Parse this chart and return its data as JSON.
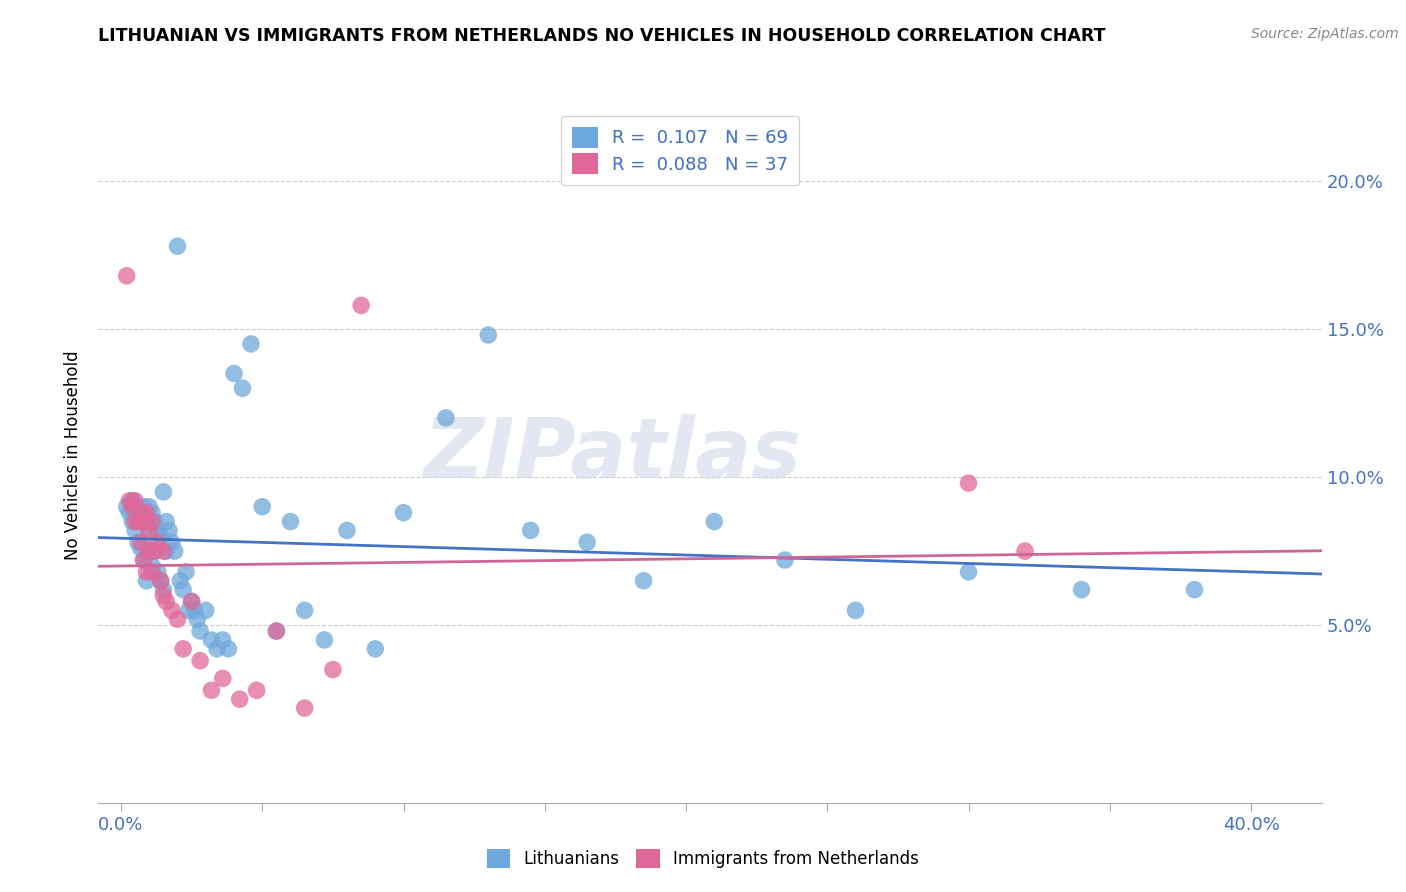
{
  "title": "LITHUANIAN VS IMMIGRANTS FROM NETHERLANDS NO VEHICLES IN HOUSEHOLD CORRELATION CHART",
  "source": "Source: ZipAtlas.com",
  "ylabel": "No Vehicles in Household",
  "ytick_vals": [
    0.05,
    0.1,
    0.15,
    0.2
  ],
  "ytick_labels": [
    "5.0%",
    "10.0%",
    "15.0%",
    "20.0%"
  ],
  "xtick_vals": [
    0.0,
    0.05,
    0.1,
    0.15,
    0.2,
    0.25,
    0.3,
    0.35,
    0.4
  ],
  "xlim": [
    -0.008,
    0.425
  ],
  "ylim": [
    -0.01,
    0.225
  ],
  "blue_color": "#6fa8dc",
  "pink_color": "#e06899",
  "blue_line_color": "#4472c4",
  "pink_line_color": "#cc6699",
  "axis_label_color": "#4472c4",
  "grid_color": "#cccccc",
  "watermark_text": "ZIPatlas",
  "legend_R1": "R =  0.107",
  "legend_N1": "N = 69",
  "legend_R2": "R =  0.088",
  "legend_N2": "N = 37",
  "blue_x": [
    0.002,
    0.003,
    0.004,
    0.004,
    0.005,
    0.005,
    0.006,
    0.006,
    0.007,
    0.007,
    0.008,
    0.008,
    0.009,
    0.009,
    0.009,
    0.01,
    0.01,
    0.01,
    0.011,
    0.011,
    0.012,
    0.012,
    0.013,
    0.013,
    0.014,
    0.014,
    0.015,
    0.015,
    0.016,
    0.016,
    0.017,
    0.018,
    0.019,
    0.02,
    0.021,
    0.022,
    0.023,
    0.024,
    0.025,
    0.026,
    0.027,
    0.028,
    0.03,
    0.032,
    0.034,
    0.036,
    0.038,
    0.04,
    0.043,
    0.046,
    0.05,
    0.055,
    0.06,
    0.065,
    0.072,
    0.08,
    0.09,
    0.1,
    0.115,
    0.13,
    0.145,
    0.165,
    0.185,
    0.21,
    0.235,
    0.26,
    0.3,
    0.34,
    0.38
  ],
  "blue_y": [
    0.09,
    0.088,
    0.085,
    0.092,
    0.09,
    0.082,
    0.088,
    0.078,
    0.085,
    0.076,
    0.09,
    0.072,
    0.086,
    0.075,
    0.065,
    0.09,
    0.082,
    0.075,
    0.088,
    0.07,
    0.085,
    0.075,
    0.082,
    0.068,
    0.08,
    0.065,
    0.095,
    0.062,
    0.085,
    0.075,
    0.082,
    0.078,
    0.075,
    0.178,
    0.065,
    0.062,
    0.068,
    0.055,
    0.058,
    0.055,
    0.052,
    0.048,
    0.055,
    0.045,
    0.042,
    0.045,
    0.042,
    0.135,
    0.13,
    0.145,
    0.09,
    0.048,
    0.085,
    0.055,
    0.045,
    0.082,
    0.042,
    0.088,
    0.12,
    0.148,
    0.082,
    0.078,
    0.065,
    0.085,
    0.072,
    0.055,
    0.068,
    0.062,
    0.062
  ],
  "pink_x": [
    0.002,
    0.003,
    0.004,
    0.005,
    0.005,
    0.006,
    0.007,
    0.007,
    0.008,
    0.008,
    0.009,
    0.009,
    0.01,
    0.01,
    0.011,
    0.011,
    0.012,
    0.013,
    0.014,
    0.015,
    0.015,
    0.016,
    0.018,
    0.02,
    0.022,
    0.025,
    0.028,
    0.032,
    0.036,
    0.042,
    0.048,
    0.055,
    0.065,
    0.075,
    0.085,
    0.3,
    0.32
  ],
  "pink_y": [
    0.168,
    0.092,
    0.09,
    0.085,
    0.092,
    0.085,
    0.088,
    0.078,
    0.085,
    0.072,
    0.088,
    0.068,
    0.082,
    0.075,
    0.085,
    0.068,
    0.075,
    0.078,
    0.065,
    0.075,
    0.06,
    0.058,
    0.055,
    0.052,
    0.042,
    0.058,
    0.038,
    0.028,
    0.032,
    0.025,
    0.028,
    0.048,
    0.022,
    0.035,
    0.158,
    0.098,
    0.075
  ]
}
